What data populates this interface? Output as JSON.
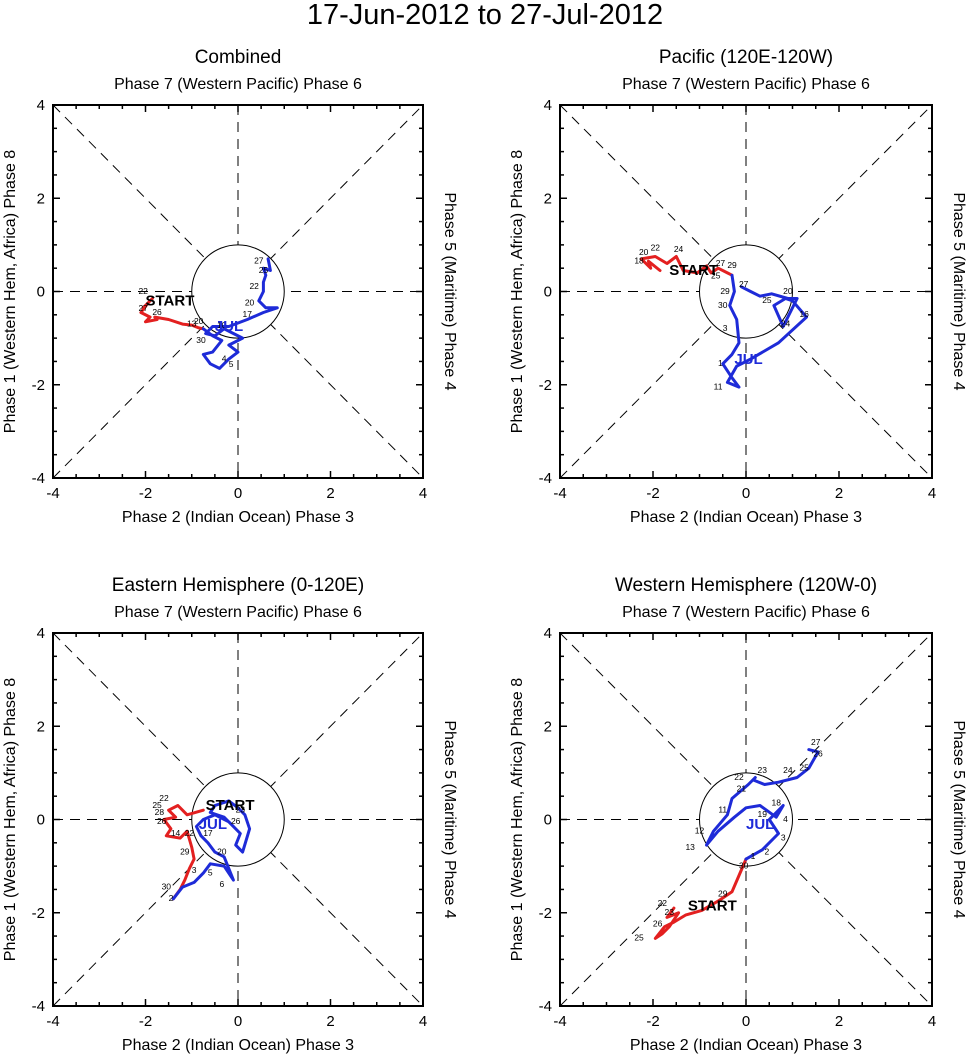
{
  "figure": {
    "title": "17-Jun-2012 to 27-Jul-2012",
    "colors": {
      "june": "#e32020",
      "july": "#1e2bd8",
      "axis": "#000000"
    }
  },
  "chart_data": [
    {
      "type": "line",
      "title": "Combined",
      "top_label": "Phase 7 (Western Pacific) Phase 6",
      "bottom_label": "Phase 2 (Indian Ocean) Phase 3",
      "left_label": "Phase 1 (Western Hem, Africa) Phase 8",
      "right_label": "Phase 5 (Maritime) Phase 4",
      "xlim": [
        -4,
        4
      ],
      "ylim": [
        -4,
        4
      ],
      "xticks": [
        "-4",
        "-2",
        "0",
        "2",
        "4"
      ],
      "yticks": [
        "-4",
        "-2",
        "0",
        "2",
        "4"
      ],
      "start_label": "START",
      "month_label": "JUL",
      "start_point": [
        -2.0,
        -0.3
      ],
      "month_label_point": [
        -0.5,
        -0.85
      ],
      "series": [
        {
          "name": "June",
          "color": "#e32020",
          "x": [
            -1.85,
            -2.05,
            -1.95,
            -2.1,
            -1.9,
            -2.0,
            -1.75,
            -1.8,
            -1.5,
            -1.2,
            -1.0,
            -0.85,
            -0.75
          ],
          "y": [
            -0.15,
            -0.35,
            -0.25,
            -0.45,
            -0.55,
            -0.65,
            -0.6,
            -0.55,
            -0.6,
            -0.7,
            -0.72,
            -0.78,
            -0.8
          ]
        },
        {
          "name": "July",
          "color": "#1e2bd8",
          "x": [
            -0.75,
            -0.55,
            -0.35,
            -0.55,
            -0.75,
            -0.6,
            -0.4,
            -0.2,
            0.0,
            -0.2,
            0.1,
            -0.1,
            -0.3,
            -0.5,
            -0.7,
            -0.55,
            -0.2,
            0.2,
            0.55,
            0.85,
            0.6,
            0.45,
            0.55,
            0.55,
            0.6,
            0.55,
            0.7,
            0.65
          ],
          "y": [
            -0.8,
            -0.95,
            -1.05,
            -1.3,
            -1.35,
            -1.55,
            -1.65,
            -1.45,
            -1.3,
            -1.15,
            -1.0,
            -0.9,
            -0.8,
            -0.95,
            -0.9,
            -0.75,
            -0.75,
            -0.6,
            -0.45,
            -0.35,
            -0.35,
            -0.2,
            0.0,
            0.2,
            0.35,
            0.5,
            0.45,
            0.7
          ]
        }
      ],
      "day_labels": [
        {
          "text": "22",
          "x": -2.05,
          "y": -0.05
        },
        {
          "text": "27",
          "x": -2.05,
          "y": -0.42
        },
        {
          "text": "26",
          "x": -1.75,
          "y": -0.5
        },
        {
          "text": "13",
          "x": -1.0,
          "y": -0.75
        },
        {
          "text": "20",
          "x": -0.85,
          "y": -0.7
        },
        {
          "text": "30",
          "x": -0.8,
          "y": -1.1
        },
        {
          "text": "4",
          "x": -0.3,
          "y": -1.5
        },
        {
          "text": "5",
          "x": -0.15,
          "y": -1.62
        },
        {
          "text": "27",
          "x": 0.45,
          "y": 0.6
        },
        {
          "text": "25",
          "x": 0.55,
          "y": 0.4
        },
        {
          "text": "22",
          "x": 0.35,
          "y": 0.05
        },
        {
          "text": "20",
          "x": 0.25,
          "y": -0.3
        },
        {
          "text": "17",
          "x": 0.2,
          "y": -0.55
        },
        {
          "text": "10",
          "x": -0.35,
          "y": -0.78
        }
      ]
    },
    {
      "type": "line",
      "title": "Pacific (120E-120W)",
      "top_label": "Phase 7 (Western Pacific) Phase 6",
      "bottom_label": "Phase 2 (Indian Ocean) Phase 3",
      "left_label": "Phase 1 (Western Hem, Africa) Phase 8",
      "right_label": "Phase 5 (Maritime) Phase 4",
      "xlim": [
        -4,
        4
      ],
      "ylim": [
        -4,
        4
      ],
      "xticks": [
        "-4",
        "-2",
        "0",
        "2",
        "4"
      ],
      "yticks": [
        "-4",
        "-2",
        "0",
        "2",
        "4"
      ],
      "start_label": "START",
      "month_label": "JUL",
      "start_point": [
        -1.65,
        0.35
      ],
      "month_label_point": [
        -0.25,
        -1.55
      ],
      "series": [
        {
          "name": "June",
          "color": "#e32020",
          "x": [
            -1.85,
            -2.1,
            -2.05,
            -2.25,
            -1.95,
            -1.7,
            -1.5,
            -1.35,
            -1.05,
            -0.85,
            -0.75,
            -0.6,
            -0.4,
            -0.3
          ],
          "y": [
            0.45,
            0.65,
            0.5,
            0.7,
            0.75,
            0.6,
            0.75,
            0.45,
            0.4,
            0.55,
            0.4,
            0.5,
            0.4,
            0.35
          ]
        },
        {
          "name": "July",
          "color": "#1e2bd8",
          "x": [
            -0.3,
            -0.25,
            -0.35,
            -0.2,
            -0.15,
            -0.3,
            -0.5,
            -0.3,
            -0.15,
            -0.4,
            -0.2,
            0.1,
            0.7,
            1.3,
            1.0,
            0.85,
            0.6,
            0.8,
            1.1,
            0.9,
            0.55,
            0.3,
            0.1,
            -0.1
          ],
          "y": [
            0.35,
            0.0,
            -0.3,
            -0.6,
            -1.1,
            -1.35,
            -1.55,
            -1.85,
            -2.05,
            -1.95,
            -1.6,
            -1.45,
            -1.1,
            -0.55,
            -0.2,
            -0.15,
            -0.3,
            -0.75,
            -0.15,
            -0.15,
            -0.05,
            -0.1,
            0.0,
            0.1
          ]
        }
      ],
      "day_labels": [
        {
          "text": "20",
          "x": -2.2,
          "y": 0.78
        },
        {
          "text": "18",
          "x": -2.3,
          "y": 0.6
        },
        {
          "text": "22",
          "x": -1.95,
          "y": 0.88
        },
        {
          "text": "24",
          "x": -1.45,
          "y": 0.85
        },
        {
          "text": "25",
          "x": -0.65,
          "y": 0.28
        },
        {
          "text": "27",
          "x": -0.55,
          "y": 0.55
        },
        {
          "text": "29",
          "x": -0.3,
          "y": 0.5
        },
        {
          "text": "29",
          "x": -0.45,
          "y": -0.05
        },
        {
          "text": "30",
          "x": -0.5,
          "y": -0.35
        },
        {
          "text": "3",
          "x": -0.45,
          "y": -0.85
        },
        {
          "text": "1",
          "x": -0.55,
          "y": -1.6
        },
        {
          "text": "11",
          "x": -0.6,
          "y": -2.1
        },
        {
          "text": "16",
          "x": 1.25,
          "y": -0.55
        },
        {
          "text": "27",
          "x": -0.05,
          "y": 0.1
        },
        {
          "text": "25",
          "x": 0.45,
          "y": -0.25
        },
        {
          "text": "20",
          "x": 0.9,
          "y": -0.05
        },
        {
          "text": "24",
          "x": 0.85,
          "y": -0.75
        }
      ]
    },
    {
      "type": "line",
      "title": "Eastern Hemisphere (0-120E)",
      "top_label": "Phase 7 (Western Pacific) Phase 6",
      "bottom_label": "Phase 2 (Indian Ocean) Phase 3",
      "left_label": "Phase 1 (Western Hem, Africa) Phase 8",
      "right_label": "Phase 5 (Maritime) Phase 4",
      "xlim": [
        -4,
        4
      ],
      "ylim": [
        -4,
        4
      ],
      "xticks": [
        "-4",
        "-2",
        "0",
        "2",
        "4"
      ],
      "yticks": [
        "-4",
        "-2",
        "0",
        "2",
        "4"
      ],
      "start_label": "START",
      "month_label": "JUL",
      "start_point": [
        -0.7,
        0.2
      ],
      "month_label_point": [
        -0.85,
        -0.2
      ],
      "series": [
        {
          "name": "June",
          "color": "#e32020",
          "x": [
            -0.75,
            -1.1,
            -1.3,
            -1.5,
            -1.35,
            -1.6,
            -1.45,
            -1.55,
            -1.25,
            -1.1,
            -1.0,
            -0.95,
            -1.05,
            -1.15,
            -1.25,
            -1.4
          ],
          "y": [
            0.2,
            0.1,
            0.3,
            0.2,
            0.05,
            0.0,
            -0.2,
            -0.35,
            -0.4,
            -0.25,
            -0.6,
            -0.85,
            -1.05,
            -1.3,
            -1.5,
            -1.7
          ]
        },
        {
          "name": "July",
          "color": "#1e2bd8",
          "x": [
            -1.4,
            -1.2,
            -0.95,
            -0.75,
            -0.6,
            -0.3,
            -0.1,
            -0.3,
            -0.5,
            -0.65,
            -0.8,
            -0.9,
            -0.75,
            -0.5,
            -0.2,
            0.05,
            -0.05,
            0.1,
            0.25,
            0.15,
            0.0,
            -0.2,
            -0.5,
            -0.6,
            -0.3,
            -0.1
          ],
          "y": [
            -1.7,
            -1.45,
            -1.35,
            -1.15,
            -0.95,
            -1.0,
            -1.3,
            -0.8,
            -0.7,
            -0.5,
            -0.35,
            -0.15,
            0.0,
            0.1,
            -0.05,
            -0.3,
            -0.55,
            -0.7,
            -0.2,
            0.1,
            0.25,
            0.4,
            0.3,
            0.15,
            0.05,
            -0.15
          ]
        }
      ],
      "day_labels": [
        {
          "text": "22",
          "x": -1.6,
          "y": 0.4
        },
        {
          "text": "25",
          "x": -1.75,
          "y": 0.25
        },
        {
          "text": "28",
          "x": -1.7,
          "y": 0.1
        },
        {
          "text": "26",
          "x": -1.65,
          "y": -0.1
        },
        {
          "text": "14",
          "x": -1.35,
          "y": -0.35
        },
        {
          "text": "22",
          "x": -1.05,
          "y": -0.35
        },
        {
          "text": "17",
          "x": -0.65,
          "y": -0.35
        },
        {
          "text": "29",
          "x": -1.15,
          "y": -0.75
        },
        {
          "text": "30",
          "x": -1.55,
          "y": -1.5
        },
        {
          "text": "2",
          "x": -1.45,
          "y": -1.75
        },
        {
          "text": "3",
          "x": -0.95,
          "y": -1.15
        },
        {
          "text": "5",
          "x": -0.6,
          "y": -1.2
        },
        {
          "text": "6",
          "x": -0.35,
          "y": -1.45
        },
        {
          "text": "20",
          "x": -0.35,
          "y": -0.75
        },
        {
          "text": "26",
          "x": -0.05,
          "y": -0.1
        },
        {
          "text": "23",
          "x": 0.05,
          "y": 0.15
        }
      ]
    },
    {
      "type": "line",
      "title": "Western Hemisphere (120W-0)",
      "top_label": "Phase 7 (Western Pacific) Phase 6",
      "bottom_label": "Phase 2 (Indian Ocean) Phase 3",
      "left_label": "Phase 1 (Western Hem, Africa) Phase 8",
      "right_label": "Phase 5 (Maritime) Phase 4",
      "xlim": [
        -4,
        4
      ],
      "ylim": [
        -4,
        4
      ],
      "xticks": [
        "-4",
        "-2",
        "0",
        "2",
        "4"
      ],
      "yticks": [
        "-4",
        "-2",
        "0",
        "2",
        "4"
      ],
      "start_label": "START",
      "month_label": "JUL",
      "start_point": [
        -1.25,
        -1.95
      ],
      "month_label_point": [
        0.0,
        -0.2
      ],
      "series": [
        {
          "name": "June",
          "color": "#e32020",
          "x": [
            -1.55,
            -1.7,
            -1.45,
            -1.65,
            -1.8,
            -1.95,
            -1.75,
            -1.55,
            -1.3,
            -0.95,
            -0.6,
            -0.3,
            -0.15,
            0.0
          ],
          "y": [
            -1.9,
            -2.1,
            -2.0,
            -2.3,
            -2.45,
            -2.55,
            -2.3,
            -2.2,
            -2.05,
            -1.95,
            -1.75,
            -1.55,
            -1.2,
            -0.85
          ]
        },
        {
          "name": "July",
          "color": "#1e2bd8",
          "x": [
            0.0,
            0.35,
            0.7,
            0.5,
            0.8,
            0.65,
            0.3,
            0.0,
            -0.25,
            -0.6,
            -0.85,
            -0.7,
            -0.4,
            -0.3,
            0.05,
            0.2,
            0.15,
            0.4,
            0.7,
            1.1,
            1.35,
            1.55,
            1.35
          ],
          "y": [
            -0.85,
            -0.65,
            -0.3,
            0.0,
            0.3,
            0.05,
            0.3,
            0.25,
            0.05,
            -0.25,
            -0.55,
            -0.25,
            0.1,
            0.45,
            0.75,
            0.9,
            0.85,
            0.75,
            0.8,
            0.9,
            1.1,
            1.45,
            1.5
          ]
        }
      ],
      "day_labels": [
        {
          "text": "22",
          "x": -1.8,
          "y": -1.85
        },
        {
          "text": "23",
          "x": -1.65,
          "y": -2.05
        },
        {
          "text": "26",
          "x": -1.9,
          "y": -2.3
        },
        {
          "text": "25",
          "x": -2.3,
          "y": -2.6
        },
        {
          "text": "29",
          "x": -0.5,
          "y": -1.65
        },
        {
          "text": "30",
          "x": -0.05,
          "y": -1.05
        },
        {
          "text": "1",
          "x": 0.15,
          "y": -0.85
        },
        {
          "text": "2",
          "x": 0.45,
          "y": -0.75
        },
        {
          "text": "3",
          "x": 0.8,
          "y": -0.45
        },
        {
          "text": "4",
          "x": 0.85,
          "y": -0.05
        },
        {
          "text": "11",
          "x": -0.5,
          "y": 0.15
        },
        {
          "text": "12",
          "x": -1.0,
          "y": -0.3
        },
        {
          "text": "13",
          "x": -1.2,
          "y": -0.65
        },
        {
          "text": "19",
          "x": 0.35,
          "y": 0.05
        },
        {
          "text": "18",
          "x": 0.65,
          "y": 0.3
        },
        {
          "text": "21",
          "x": -0.1,
          "y": 0.6
        },
        {
          "text": "22",
          "x": -0.15,
          "y": 0.85
        },
        {
          "text": "23",
          "x": 0.35,
          "y": 1.0
        },
        {
          "text": "24",
          "x": 0.9,
          "y": 1.0
        },
        {
          "text": "25",
          "x": 1.25,
          "y": 1.05
        },
        {
          "text": "27",
          "x": 1.5,
          "y": 1.6
        },
        {
          "text": "26",
          "x": 1.55,
          "y": 1.35
        }
      ]
    }
  ]
}
